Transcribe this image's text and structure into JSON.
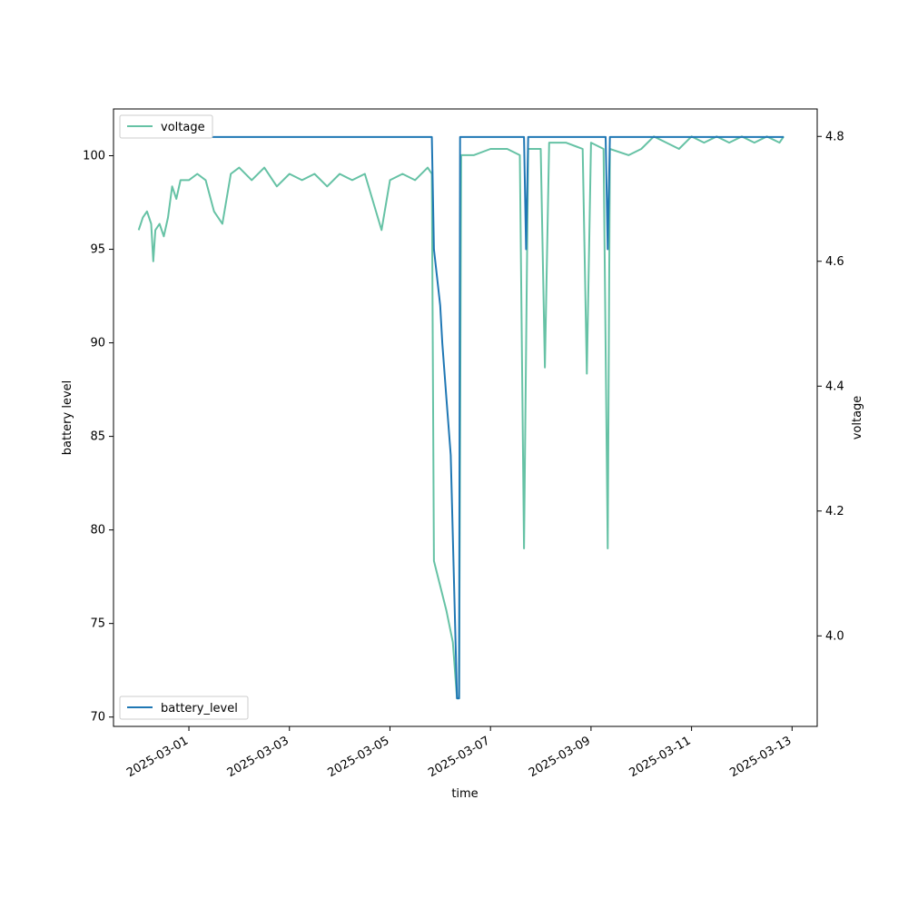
{
  "chart_data": {
    "type": "line",
    "xlabel": "time",
    "ylabel_left": "battery level",
    "ylabel_right": "voltage",
    "x_ticks": [
      "2025-03-01",
      "2025-03-03",
      "2025-03-05",
      "2025-03-07",
      "2025-03-09",
      "2025-03-11",
      "2025-03-13"
    ],
    "y_left_ticks": [
      70,
      75,
      80,
      85,
      90,
      95,
      100
    ],
    "y_right_ticks": [
      4.0,
      4.2,
      4.4,
      4.6,
      4.8
    ],
    "xlim": [
      "2025-02-27T12:00",
      "2025-03-13T12:00"
    ],
    "ylim_left": [
      69.5,
      102.5
    ],
    "ylim_right": [
      3.855,
      4.844
    ],
    "legend_left": {
      "label": "battery_level",
      "position": "lower left"
    },
    "legend_right": {
      "label": "voltage",
      "position": "upper left"
    },
    "colors": {
      "battery_level": "#1f77b4",
      "voltage": "#66c2a5"
    },
    "battery_level": [
      [
        "2025-02-28T00:00",
        101
      ],
      [
        "2025-03-05T20:00",
        101
      ],
      [
        "2025-03-05T21:00",
        95
      ],
      [
        "2025-03-06T00:00",
        92
      ],
      [
        "2025-03-06T01:00",
        90
      ],
      [
        "2025-03-06T03:00",
        87
      ],
      [
        "2025-03-06T05:00",
        84
      ],
      [
        "2025-03-06T08:00",
        71
      ],
      [
        "2025-03-06T09:00",
        71
      ],
      [
        "2025-03-06T09:30",
        101
      ],
      [
        "2025-03-07T16:00",
        101
      ],
      [
        "2025-03-07T17:00",
        95
      ],
      [
        "2025-03-07T18:00",
        101
      ],
      [
        "2025-03-09T07:00",
        101
      ],
      [
        "2025-03-09T08:00",
        95
      ],
      [
        "2025-03-09T09:00",
        101
      ],
      [
        "2025-03-12T20:00",
        101
      ]
    ],
    "voltage": [
      [
        "2025-02-28T00:00",
        4.65
      ],
      [
        "2025-02-28T02:00",
        4.67
      ],
      [
        "2025-02-28T04:00",
        4.68
      ],
      [
        "2025-02-28T06:00",
        4.66
      ],
      [
        "2025-02-28T07:00",
        4.6
      ],
      [
        "2025-02-28T08:00",
        4.65
      ],
      [
        "2025-02-28T10:00",
        4.66
      ],
      [
        "2025-02-28T12:00",
        4.64
      ],
      [
        "2025-02-28T14:00",
        4.67
      ],
      [
        "2025-02-28T16:00",
        4.72
      ],
      [
        "2025-02-28T18:00",
        4.7
      ],
      [
        "2025-02-28T20:00",
        4.73
      ],
      [
        "2025-03-01T00:00",
        4.73
      ],
      [
        "2025-03-01T04:00",
        4.74
      ],
      [
        "2025-03-01T08:00",
        4.73
      ],
      [
        "2025-03-01T12:00",
        4.68
      ],
      [
        "2025-03-01T16:00",
        4.66
      ],
      [
        "2025-03-01T20:00",
        4.74
      ],
      [
        "2025-03-02T00:00",
        4.75
      ],
      [
        "2025-03-02T06:00",
        4.73
      ],
      [
        "2025-03-02T12:00",
        4.75
      ],
      [
        "2025-03-02T18:00",
        4.72
      ],
      [
        "2025-03-03T00:00",
        4.74
      ],
      [
        "2025-03-03T06:00",
        4.73
      ],
      [
        "2025-03-03T12:00",
        4.74
      ],
      [
        "2025-03-03T18:00",
        4.72
      ],
      [
        "2025-03-04T00:00",
        4.74
      ],
      [
        "2025-03-04T06:00",
        4.73
      ],
      [
        "2025-03-04T12:00",
        4.74
      ],
      [
        "2025-03-04T20:00",
        4.65
      ],
      [
        "2025-03-05T00:00",
        4.73
      ],
      [
        "2025-03-05T06:00",
        4.74
      ],
      [
        "2025-03-05T12:00",
        4.73
      ],
      [
        "2025-03-05T18:00",
        4.75
      ],
      [
        "2025-03-05T20:00",
        4.74
      ],
      [
        "2025-03-05T21:00",
        4.12
      ],
      [
        "2025-03-06T00:00",
        4.08
      ],
      [
        "2025-03-06T03:00",
        4.04
      ],
      [
        "2025-03-06T06:00",
        3.99
      ],
      [
        "2025-03-06T08:00",
        3.9
      ],
      [
        "2025-03-06T09:00",
        3.9
      ],
      [
        "2025-03-06T10:00",
        4.77
      ],
      [
        "2025-03-06T16:00",
        4.77
      ],
      [
        "2025-03-07T00:00",
        4.78
      ],
      [
        "2025-03-07T08:00",
        4.78
      ],
      [
        "2025-03-07T14:00",
        4.77
      ],
      [
        "2025-03-07T16:00",
        4.14
      ],
      [
        "2025-03-07T18:00",
        4.78
      ],
      [
        "2025-03-07T20:00",
        4.78
      ],
      [
        "2025-03-08T00:00",
        4.78
      ],
      [
        "2025-03-08T02:00",
        4.43
      ],
      [
        "2025-03-08T04:00",
        4.79
      ],
      [
        "2025-03-08T12:00",
        4.79
      ],
      [
        "2025-03-08T20:00",
        4.78
      ],
      [
        "2025-03-08T22:00",
        4.42
      ],
      [
        "2025-03-09T00:00",
        4.79
      ],
      [
        "2025-03-09T06:00",
        4.78
      ],
      [
        "2025-03-09T08:00",
        4.14
      ],
      [
        "2025-03-09T09:00",
        4.78
      ],
      [
        "2025-03-09T18:00",
        4.77
      ],
      [
        "2025-03-10T00:00",
        4.78
      ],
      [
        "2025-03-10T06:00",
        4.8
      ],
      [
        "2025-03-10T12:00",
        4.79
      ],
      [
        "2025-03-10T18:00",
        4.78
      ],
      [
        "2025-03-11T00:00",
        4.8
      ],
      [
        "2025-03-11T06:00",
        4.79
      ],
      [
        "2025-03-11T12:00",
        4.8
      ],
      [
        "2025-03-11T18:00",
        4.79
      ],
      [
        "2025-03-12T00:00",
        4.8
      ],
      [
        "2025-03-12T06:00",
        4.79
      ],
      [
        "2025-03-12T12:00",
        4.8
      ],
      [
        "2025-03-12T18:00",
        4.79
      ],
      [
        "2025-03-12T20:00",
        4.8
      ]
    ]
  }
}
